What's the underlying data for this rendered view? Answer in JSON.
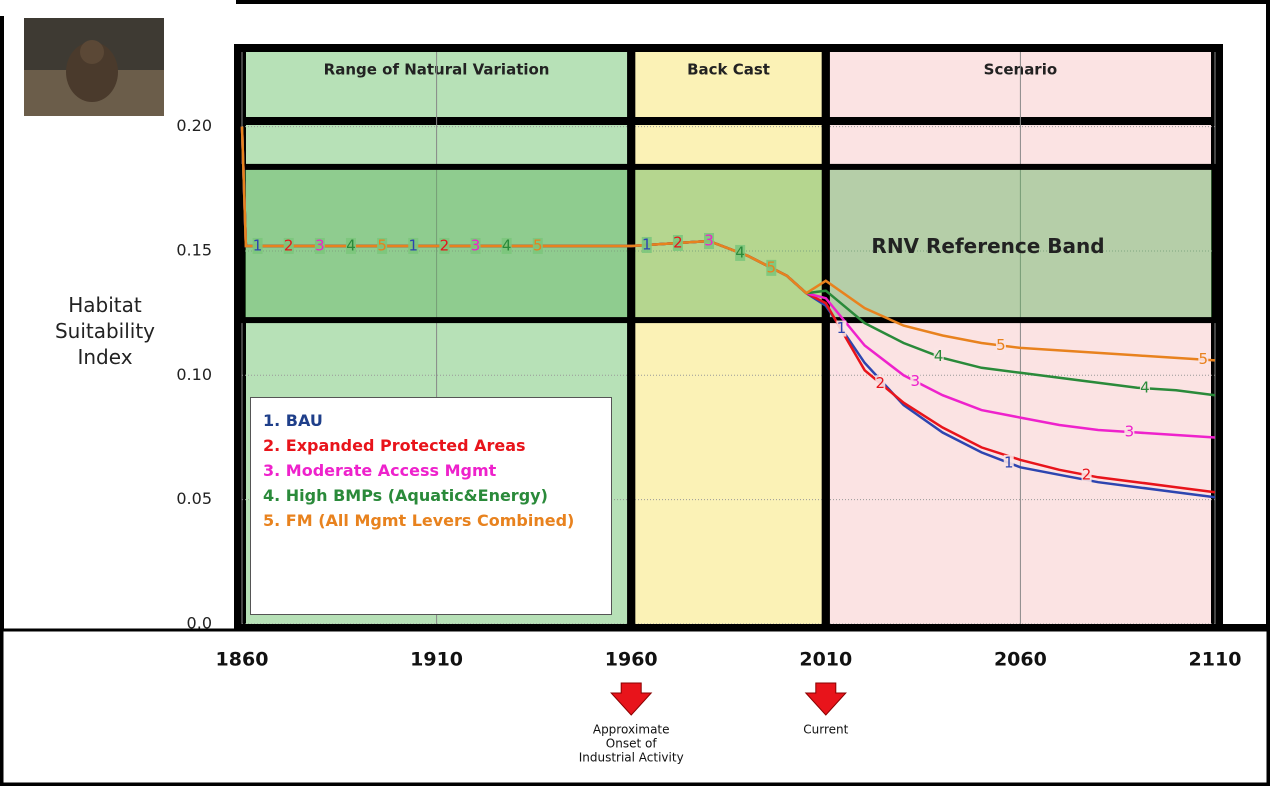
{
  "chart_data": {
    "type": "line",
    "ylabel": "Habitat Suitability Index",
    "x": [
      1860,
      1861,
      1870,
      1900,
      1930,
      1960,
      1970,
      1980,
      1990,
      2000,
      2005,
      2010,
      2020,
      2030,
      2040,
      2050,
      2060,
      2070,
      2080,
      2090,
      2100,
      2110
    ],
    "series": [
      {
        "name": "1. BAU",
        "marker": "1",
        "color": "#2d45b0",
        "legend_color": "#1f3f8a",
        "values": [
          0.2,
          0.152,
          0.152,
          0.152,
          0.152,
          0.152,
          0.153,
          0.154,
          0.148,
          0.14,
          0.133,
          0.128,
          0.105,
          0.088,
          0.077,
          0.069,
          0.063,
          0.06,
          0.057,
          0.055,
          0.053,
          0.051
        ]
      },
      {
        "name": "2. Expanded Protected Areas",
        "marker": "2",
        "color": "#e8141b",
        "legend_color": "#e8141b",
        "values": [
          0.2,
          0.152,
          0.152,
          0.152,
          0.152,
          0.152,
          0.153,
          0.154,
          0.148,
          0.14,
          0.133,
          0.129,
          0.102,
          0.089,
          0.079,
          0.071,
          0.066,
          0.062,
          0.059,
          0.057,
          0.055,
          0.053
        ]
      },
      {
        "name": "3. Moderate Access Mgmt",
        "marker": "3",
        "color": "#ee22cc",
        "legend_color": "#ee22cc",
        "values": [
          0.2,
          0.152,
          0.152,
          0.152,
          0.152,
          0.152,
          0.153,
          0.154,
          0.148,
          0.14,
          0.133,
          0.131,
          0.112,
          0.1,
          0.092,
          0.086,
          0.083,
          0.08,
          0.078,
          0.077,
          0.076,
          0.075
        ]
      },
      {
        "name": "4. High BMPs (Aquatic&Energy)",
        "marker": "4",
        "color": "#2a8a3a",
        "legend_color": "#2a8a3a",
        "values": [
          0.2,
          0.152,
          0.152,
          0.152,
          0.152,
          0.152,
          0.153,
          0.154,
          0.148,
          0.14,
          0.133,
          0.134,
          0.121,
          0.113,
          0.107,
          0.103,
          0.101,
          0.099,
          0.097,
          0.095,
          0.094,
          0.092
        ]
      },
      {
        "name": "5. FM (All Mgmt Levers Combined)",
        "marker": "5",
        "color": "#e8821e",
        "legend_color": "#e8821e",
        "values": [
          0.2,
          0.152,
          0.152,
          0.152,
          0.152,
          0.152,
          0.153,
          0.154,
          0.148,
          0.14,
          0.133,
          0.138,
          0.127,
          0.12,
          0.116,
          0.113,
          0.111,
          0.11,
          0.109,
          0.108,
          0.107,
          0.106
        ]
      }
    ],
    "xlim": [
      1860,
      2110
    ],
    "xticks": [
      1860,
      1910,
      1960,
      2010,
      2060,
      2110
    ],
    "ylim": [
      0,
      0.23
    ],
    "yticks": [
      {
        "value": 0,
        "label": "0.0"
      },
      0.05,
      {
        "value": 0.1,
        "label": "0.10"
      },
      0.15,
      {
        "value": 0.2,
        "label": "0.20"
      }
    ],
    "grid": true,
    "regions": [
      {
        "label": "Range of Natural Variation",
        "start": 1860,
        "end": 1960,
        "color": "#b7e1b7"
      },
      {
        "label": "Back Cast",
        "start": 1960,
        "end": 2010,
        "color": "#fbf2b6"
      },
      {
        "label": "Scenario",
        "start": 2010,
        "end": 2110,
        "color": "#fbe3e3"
      }
    ],
    "reference_band": {
      "label": "RNV Reference Band",
      "range": [
        0.1222,
        0.1838
      ],
      "color": "#5fb35f"
    },
    "annotations": [
      {
        "x": 1960,
        "lines": [
          "Approximate",
          "Onset of",
          "Industrial Activity"
        ]
      },
      {
        "x": 2010,
        "lines": [
          "Current"
        ]
      }
    ]
  }
}
